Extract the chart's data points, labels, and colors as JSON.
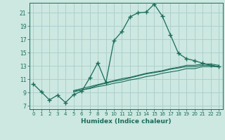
{
  "xlabel": "Humidex (Indice chaleur)",
  "background_color": "#cce8e0",
  "grid_color": "#aacccc",
  "line_color": "#1a6b5a",
  "xlim": [
    -0.5,
    23.5
  ],
  "ylim": [
    6.5,
    22.5
  ],
  "xticks": [
    0,
    1,
    2,
    3,
    4,
    5,
    6,
    7,
    8,
    9,
    10,
    11,
    12,
    13,
    14,
    15,
    16,
    17,
    18,
    19,
    20,
    21,
    22,
    23
  ],
  "yticks": [
    7,
    9,
    11,
    13,
    15,
    17,
    19,
    21
  ],
  "series_main": {
    "x": [
      0,
      1,
      2,
      3,
      4,
      5,
      6,
      7,
      8,
      9,
      10,
      11,
      12,
      13,
      14,
      15,
      16,
      17,
      18,
      19,
      20,
      21,
      22,
      23
    ],
    "y": [
      10.3,
      9.1,
      7.9,
      8.6,
      7.5,
      8.7,
      9.2,
      11.2,
      13.5,
      10.5,
      16.8,
      18.2,
      20.4,
      21.0,
      21.1,
      22.3,
      20.5,
      17.7,
      14.9,
      14.1,
      13.8,
      13.4,
      13.1,
      12.9
    ]
  },
  "series_flat": [
    {
      "x": [
        5,
        6,
        7,
        8,
        9,
        10,
        11,
        12,
        13,
        14,
        15,
        16,
        17,
        18,
        19,
        20,
        21,
        22,
        23
      ],
      "y": [
        9.2,
        9.4,
        9.6,
        9.9,
        10.1,
        10.4,
        10.6,
        10.9,
        11.1,
        11.4,
        11.6,
        11.9,
        12.1,
        12.3,
        12.6,
        12.6,
        12.9,
        12.9,
        12.9
      ]
    },
    {
      "x": [
        5,
        6,
        7,
        8,
        9,
        10,
        11,
        12,
        13,
        14,
        15,
        16,
        17,
        18,
        19,
        20,
        21,
        22,
        23
      ],
      "y": [
        9.3,
        9.6,
        9.9,
        10.2,
        10.5,
        10.8,
        11.1,
        11.3,
        11.6,
        11.9,
        12.1,
        12.3,
        12.6,
        12.8,
        13.1,
        13.1,
        13.3,
        13.3,
        13.1
      ]
    },
    {
      "x": [
        5,
        6,
        7,
        8,
        9,
        10,
        11,
        12,
        13,
        14,
        15,
        16,
        17,
        18,
        19,
        20,
        21,
        22,
        23
      ],
      "y": [
        9.1,
        9.4,
        9.7,
        10.1,
        10.4,
        10.7,
        10.9,
        11.2,
        11.5,
        11.8,
        12.0,
        12.2,
        12.5,
        12.7,
        12.9,
        12.9,
        13.1,
        13.1,
        12.9
      ]
    }
  ]
}
